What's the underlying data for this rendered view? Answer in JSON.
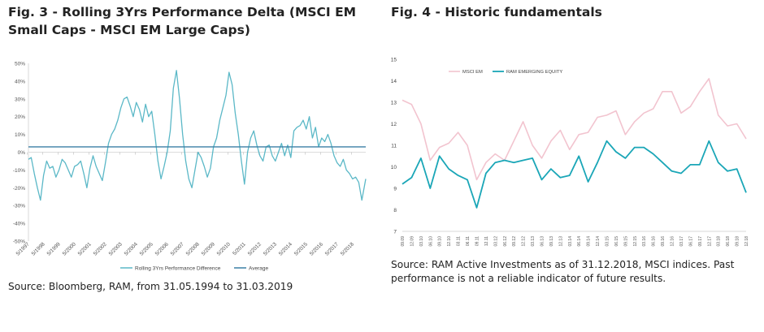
{
  "fig3": {
    "title": "Fig. 3 - Rolling 3Yrs Performance Delta (MSCI EM Small Caps - MSCI EM Large Caps)",
    "source": "Source: Bloomberg, RAM, from 31.05.1994 to 31.03.2019"
  },
  "fig4": {
    "title": "Fig. 4 - Historic fundamentals",
    "source": "Source: RAM Active Investments as of 31.12.2018, MSCI indices. Past performance is not a reliable indicator of future results."
  },
  "colors": {
    "fig3_series": "#5bb8c7",
    "fig3_average": "#3b7fa5",
    "msci_em": "#f2c4cf",
    "ram": "#1aa6b7"
  },
  "chart_data": [
    {
      "type": "line",
      "title": "Rolling 3Yrs Performance Delta (MSCI EM Small Caps - MSCI EM Large Caps)",
      "xlabel": "",
      "ylabel": "",
      "ylim": [
        -50,
        50
      ],
      "y_ticks": [
        "50%",
        "40%",
        "30%",
        "20%",
        "10%",
        "0%",
        "-10%",
        "-20%",
        "-30%",
        "-40%",
        "-50%"
      ],
      "x_ticks": [
        "5/1997",
        "5/1998",
        "5/1999",
        "5/2000",
        "5/2001",
        "5/2002",
        "5/2003",
        "5/2004",
        "5/2005",
        "5/2006",
        "5/2007",
        "5/2008",
        "5/2009",
        "5/2010",
        "5/2011",
        "5/2012",
        "5/2013",
        "5/2014",
        "5/2015",
        "5/2016",
        "5/2017",
        "5/2018"
      ],
      "x_range": [
        1997.42,
        2019.25
      ],
      "legend": [
        "Rolling 3Yrs Performance Difference",
        "Average"
      ],
      "legend_position": "bottom",
      "series": [
        {
          "name": "Rolling 3Yrs Performance Difference",
          "x": [
            1997.42,
            1997.6,
            1997.8,
            1998.0,
            1998.2,
            1998.4,
            1998.6,
            1998.8,
            1999.0,
            1999.2,
            1999.4,
            1999.6,
            1999.8,
            2000.0,
            2000.2,
            2000.4,
            2000.6,
            2000.8,
            2001.0,
            2001.2,
            2001.4,
            2001.6,
            2001.8,
            2002.0,
            2002.2,
            2002.4,
            2002.6,
            2002.8,
            2003.0,
            2003.2,
            2003.4,
            2003.6,
            2003.8,
            2004.0,
            2004.2,
            2004.4,
            2004.6,
            2004.8,
            2005.0,
            2005.2,
            2005.4,
            2005.6,
            2005.8,
            2006.0,
            2006.2,
            2006.4,
            2006.6,
            2006.8,
            2007.0,
            2007.2,
            2007.4,
            2007.6,
            2007.8,
            2008.0,
            2008.2,
            2008.4,
            2008.6,
            2008.8,
            2009.0,
            2009.2,
            2009.4,
            2009.6,
            2009.8,
            2010.0,
            2010.2,
            2010.4,
            2010.6,
            2010.8,
            2011.0,
            2011.2,
            2011.4,
            2011.6,
            2011.8,
            2012.0,
            2012.2,
            2012.4,
            2012.6,
            2012.8,
            2013.0,
            2013.2,
            2013.4,
            2013.6,
            2013.8,
            2014.0,
            2014.2,
            2014.4,
            2014.6,
            2014.8,
            2015.0,
            2015.2,
            2015.4,
            2015.6,
            2015.8,
            2016.0,
            2016.2,
            2016.4,
            2016.6,
            2016.8,
            2017.0,
            2017.2,
            2017.4,
            2017.6,
            2017.8,
            2018.0,
            2018.2,
            2018.4,
            2018.6,
            2018.8,
            2019.0,
            2019.25
          ],
          "values": [
            -4,
            -3,
            -12,
            -20,
            -27,
            -13,
            -5,
            -9,
            -8,
            -14,
            -10,
            -4,
            -6,
            -10,
            -14,
            -8,
            -7,
            -5,
            -12,
            -20,
            -9,
            -2,
            -8,
            -12,
            -16,
            -6,
            5,
            10,
            13,
            18,
            25,
            30,
            31,
            26,
            20,
            28,
            24,
            17,
            27,
            20,
            23,
            10,
            -5,
            -15,
            -8,
            0,
            12,
            36,
            46,
            30,
            10,
            -5,
            -15,
            -20,
            -10,
            0,
            -3,
            -8,
            -14,
            -9,
            3,
            8,
            18,
            25,
            32,
            45,
            38,
            22,
            10,
            -5,
            -18,
            0,
            8,
            12,
            4,
            -2,
            -5,
            3,
            4,
            -2,
            -5,
            0,
            5,
            -2,
            4,
            -3,
            12,
            14,
            15,
            18,
            13,
            20,
            8,
            14,
            3,
            8,
            6,
            10,
            5,
            -2,
            -6,
            -8,
            -4,
            -10,
            -12,
            -15,
            -14,
            -17,
            -27,
            -15
          ]
        },
        {
          "name": "Average",
          "value": 3
        }
      ]
    },
    {
      "type": "line",
      "title": "Historic fundamentals",
      "xlabel": "",
      "ylabel": "",
      "ylim": [
        7,
        15
      ],
      "y_ticks": [
        "15",
        "14",
        "13",
        "12",
        "11",
        "10",
        "9",
        "8",
        "7"
      ],
      "categories": [
        "09.09",
        "12.09",
        "03.10",
        "06.10",
        "09.10",
        "12.10",
        "03.11",
        "06.11",
        "09.11",
        "12.11",
        "03.12",
        "06.12",
        "09.12",
        "12.12",
        "03.13",
        "06.13",
        "09.13",
        "12.13",
        "03.14",
        "06.14",
        "09.14",
        "12.14",
        "03.15",
        "06.15",
        "09.15",
        "12.15",
        "03.16",
        "06.16",
        "09.16",
        "12.16",
        "03.17",
        "06.17",
        "09.17",
        "12.17",
        "03.18",
        "06.18",
        "09.18",
        "12.18"
      ],
      "legend_position": "top-left",
      "series": [
        {
          "name": "MSCI EM",
          "values": [
            13.1,
            12.9,
            12.0,
            10.3,
            10.9,
            11.1,
            11.6,
            11.0,
            9.4,
            10.2,
            10.6,
            10.3,
            11.2,
            12.1,
            11.0,
            10.4,
            11.2,
            11.7,
            10.8,
            11.5,
            11.6,
            12.3,
            12.4,
            12.6,
            11.5,
            12.1,
            12.5,
            12.7,
            13.5,
            13.5,
            12.5,
            12.8,
            13.5,
            14.1,
            12.4,
            11.9,
            12.0,
            11.3
          ]
        },
        {
          "name": "RAM EMERGING EQUITY",
          "values": [
            9.2,
            9.5,
            10.4,
            9.0,
            10.5,
            9.9,
            9.6,
            9.4,
            8.1,
            9.7,
            10.2,
            10.3,
            10.2,
            10.3,
            10.4,
            9.4,
            9.9,
            9.5,
            9.6,
            10.5,
            9.3,
            10.2,
            11.2,
            10.7,
            10.4,
            10.9,
            10.9,
            10.6,
            10.2,
            9.8,
            9.7,
            10.1,
            10.1,
            11.2,
            10.2,
            9.8,
            9.9,
            8.8
          ]
        }
      ]
    }
  ]
}
